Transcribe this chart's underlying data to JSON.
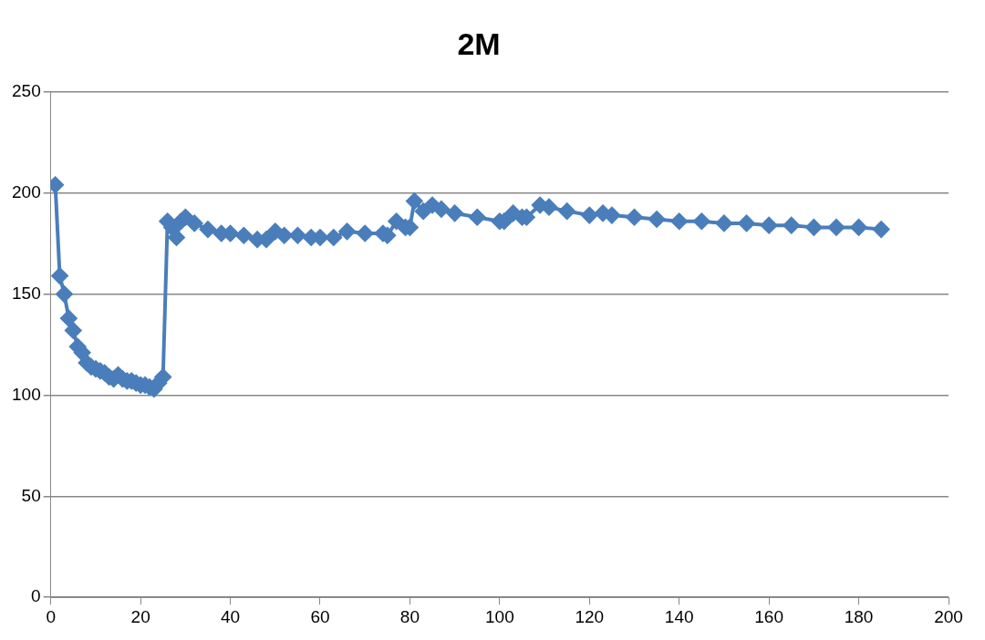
{
  "chart_data": {
    "type": "line",
    "title": "2M",
    "x": [
      1,
      2,
      3,
      4,
      5,
      6,
      7,
      8,
      9,
      10,
      11,
      12,
      13,
      14,
      15,
      16,
      17,
      18,
      19,
      20,
      21,
      22,
      23,
      24,
      25,
      26,
      27,
      28,
      29,
      30,
      32,
      35,
      38,
      40,
      43,
      46,
      48,
      50,
      52,
      55,
      58,
      60,
      63,
      66,
      70,
      74,
      75,
      77,
      79,
      80,
      81,
      83,
      85,
      87,
      90,
      95,
      100,
      101,
      103,
      105,
      106,
      109,
      111,
      115,
      120,
      123,
      125,
      130,
      135,
      140,
      145,
      150,
      155,
      160,
      165,
      170,
      175,
      180,
      185
    ],
    "series": [
      {
        "color": "#4a7ebb",
        "values": [
          204,
          159,
          150,
          138,
          132,
          124,
          121,
          116,
          114,
          113,
          112,
          111,
          109,
          108,
          110,
          108,
          107,
          107,
          106,
          105,
          105,
          104,
          103,
          106,
          109,
          186,
          183,
          178,
          186,
          188,
          185,
          182,
          180,
          180,
          179,
          177,
          177,
          181,
          179,
          179,
          178,
          178,
          178,
          181,
          180,
          180,
          179,
          186,
          183,
          183,
          196,
          191,
          194,
          192,
          190,
          188,
          186,
          186,
          190,
          188,
          188,
          194,
          193,
          191,
          189,
          190,
          189,
          188,
          187,
          186,
          186,
          185,
          185,
          184,
          184,
          183,
          183,
          183,
          182
        ]
      }
    ],
    "xlim": [
      0,
      200
    ],
    "xticks": [
      0,
      20,
      40,
      60,
      80,
      100,
      120,
      140,
      160,
      180,
      200
    ],
    "ylim": [
      0,
      250
    ],
    "yticks": [
      0,
      50,
      100,
      150,
      200,
      250
    ],
    "grid": "y",
    "legend": false,
    "marker": "diamond",
    "line_style": "solid"
  }
}
